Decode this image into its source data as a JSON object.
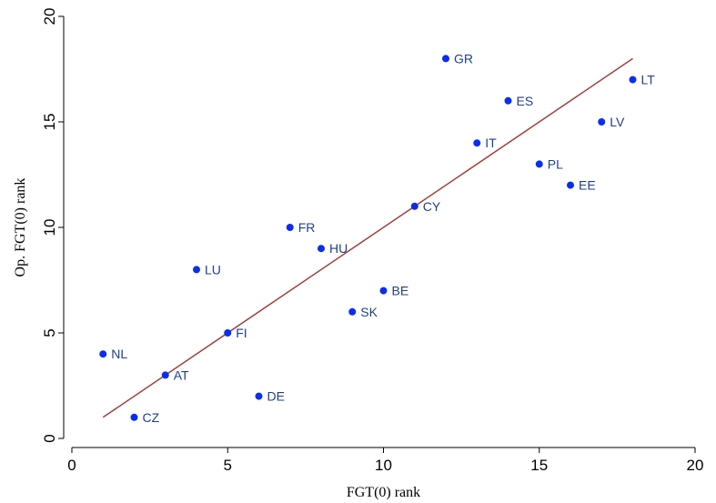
{
  "chart_data": {
    "type": "scatter",
    "title": "",
    "xlabel": "FGT(0) rank",
    "ylabel": "Op. FGT(0) rank",
    "xlim": [
      0,
      20
    ],
    "ylim": [
      0,
      20
    ],
    "xticks": [
      0,
      5,
      10,
      15,
      20
    ],
    "yticks": [
      0,
      5,
      10,
      15,
      20
    ],
    "grid": false,
    "point_color": "#0a2ef0",
    "label_color": "#1f3f8f",
    "line_color": "#a0413c",
    "points": [
      {
        "label": "NL",
        "x": 1,
        "y": 4
      },
      {
        "label": "CZ",
        "x": 2,
        "y": 1
      },
      {
        "label": "AT",
        "x": 3,
        "y": 3
      },
      {
        "label": "LU",
        "x": 4,
        "y": 8
      },
      {
        "label": "FI",
        "x": 5,
        "y": 5
      },
      {
        "label": "DE",
        "x": 6,
        "y": 2
      },
      {
        "label": "FR",
        "x": 7,
        "y": 10
      },
      {
        "label": "HU",
        "x": 8,
        "y": 9
      },
      {
        "label": "SK",
        "x": 9,
        "y": 6
      },
      {
        "label": "BE",
        "x": 10,
        "y": 7
      },
      {
        "label": "CY",
        "x": 11,
        "y": 11
      },
      {
        "label": "GR",
        "x": 12,
        "y": 18
      },
      {
        "label": "IT",
        "x": 13,
        "y": 14
      },
      {
        "label": "ES",
        "x": 14,
        "y": 16
      },
      {
        "label": "PL",
        "x": 15,
        "y": 13
      },
      {
        "label": "EE",
        "x": 16,
        "y": 12
      },
      {
        "label": "LV",
        "x": 17,
        "y": 15
      },
      {
        "label": "LT",
        "x": 18,
        "y": 17
      }
    ],
    "fit_line": {
      "x": [
        1,
        18
      ],
      "y": [
        1,
        18
      ]
    }
  }
}
